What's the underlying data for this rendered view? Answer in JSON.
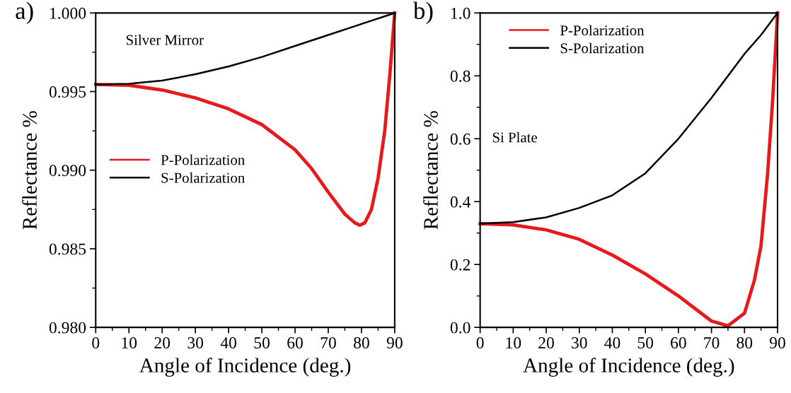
{
  "chart_data": [
    {
      "type": "line",
      "title": "a)",
      "xlabel": "Angle of Incidence (deg.)",
      "ylabel": "Reflectance %",
      "annotations": [
        "Silver Mirror"
      ],
      "xlim": [
        0,
        90
      ],
      "xticks": [
        0,
        10,
        20,
        30,
        40,
        50,
        60,
        70,
        80,
        90
      ],
      "ylim": [
        0.98,
        1.0
      ],
      "yticks": [
        {
          "value": 0.98,
          "label": "0.980"
        },
        {
          "value": 0.985,
          "label": "0.985"
        },
        {
          "value": 0.99,
          "label": "0.990"
        },
        {
          "value": 0.995,
          "label": "0.995"
        },
        {
          "value": 1.0,
          "label": "1.000"
        }
      ],
      "grid": false,
      "legend": "left",
      "line_style": "solid",
      "marker": "none",
      "series": [
        {
          "name": "P-Polarization",
          "color": "#e8191a",
          "x": [
            0,
            10,
            20,
            30,
            40,
            50,
            60,
            65,
            70,
            75,
            78,
            79.5,
            81,
            83,
            85,
            87,
            88.5,
            90
          ],
          "values": [
            0.99545,
            0.9954,
            0.9951,
            0.9946,
            0.9939,
            0.9929,
            0.9913,
            0.9901,
            0.9886,
            0.9872,
            0.98665,
            0.9865,
            0.98665,
            0.9875,
            0.9895,
            0.9925,
            0.996,
            1.0
          ]
        },
        {
          "name": "S-Polarization",
          "color": "#000000",
          "x": [
            0,
            10,
            20,
            30,
            40,
            50,
            60,
            70,
            80,
            90
          ],
          "values": [
            0.99545,
            0.9955,
            0.9957,
            0.9961,
            0.9966,
            0.9972,
            0.9979,
            0.9986,
            0.9993,
            1.0
          ]
        }
      ]
    },
    {
      "type": "line",
      "title": "b)",
      "xlabel": "Angle of Incidence (deg.)",
      "ylabel": "Reflectance %",
      "annotations": [
        "Si Plate"
      ],
      "xlim": [
        0,
        90
      ],
      "xticks": [
        0,
        10,
        20,
        30,
        40,
        50,
        60,
        70,
        80,
        90
      ],
      "ylim": [
        0,
        1.0
      ],
      "yticks": [
        {
          "value": 0,
          "label": "0.0"
        },
        {
          "value": 0.2,
          "label": "0.2"
        },
        {
          "value": 0.4,
          "label": "0.4"
        },
        {
          "value": 0.6,
          "label": "0.6"
        },
        {
          "value": 0.8,
          "label": "0.8"
        },
        {
          "value": 1.0,
          "label": "1.0"
        }
      ],
      "grid": false,
      "legend": "top left",
      "line_style": "solid",
      "marker": "none",
      "series": [
        {
          "name": "P-Polarization",
          "color": "#e8191a",
          "x": [
            0,
            10,
            20,
            30,
            40,
            50,
            60,
            70,
            75,
            80,
            83,
            85,
            87,
            88.5,
            90
          ],
          "values": [
            0.33,
            0.326,
            0.31,
            0.28,
            0.23,
            0.17,
            0.1,
            0.02,
            0.005,
            0.045,
            0.15,
            0.26,
            0.49,
            0.72,
            1.0
          ]
        },
        {
          "name": "S-Polarization",
          "color": "#000000",
          "x": [
            0,
            10,
            20,
            30,
            40,
            50,
            60,
            70,
            80,
            85,
            90
          ],
          "values": [
            0.33,
            0.335,
            0.35,
            0.38,
            0.42,
            0.49,
            0.6,
            0.73,
            0.87,
            0.93,
            1.0
          ]
        }
      ]
    }
  ]
}
